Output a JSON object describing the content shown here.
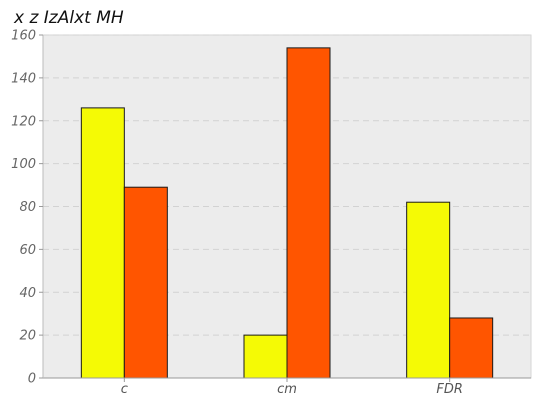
{
  "chart_data": {
    "type": "bar",
    "title": "x z IzAlxt MH",
    "xlabel": "",
    "ylabel": "",
    "categories": [
      "c",
      "cm",
      "FDR"
    ],
    "series": [
      {
        "values": [
          126,
          20,
          82
        ],
        "color": "#f5fa05"
      },
      {
        "values": [
          89,
          154,
          28
        ],
        "color": "#ff5500"
      }
    ],
    "ylim": [
      0,
      160
    ],
    "yticks": [
      0,
      20,
      40,
      60,
      80,
      100,
      120,
      140,
      160
    ],
    "grid": true,
    "legend": "none",
    "plot_background": "#ececec"
  }
}
